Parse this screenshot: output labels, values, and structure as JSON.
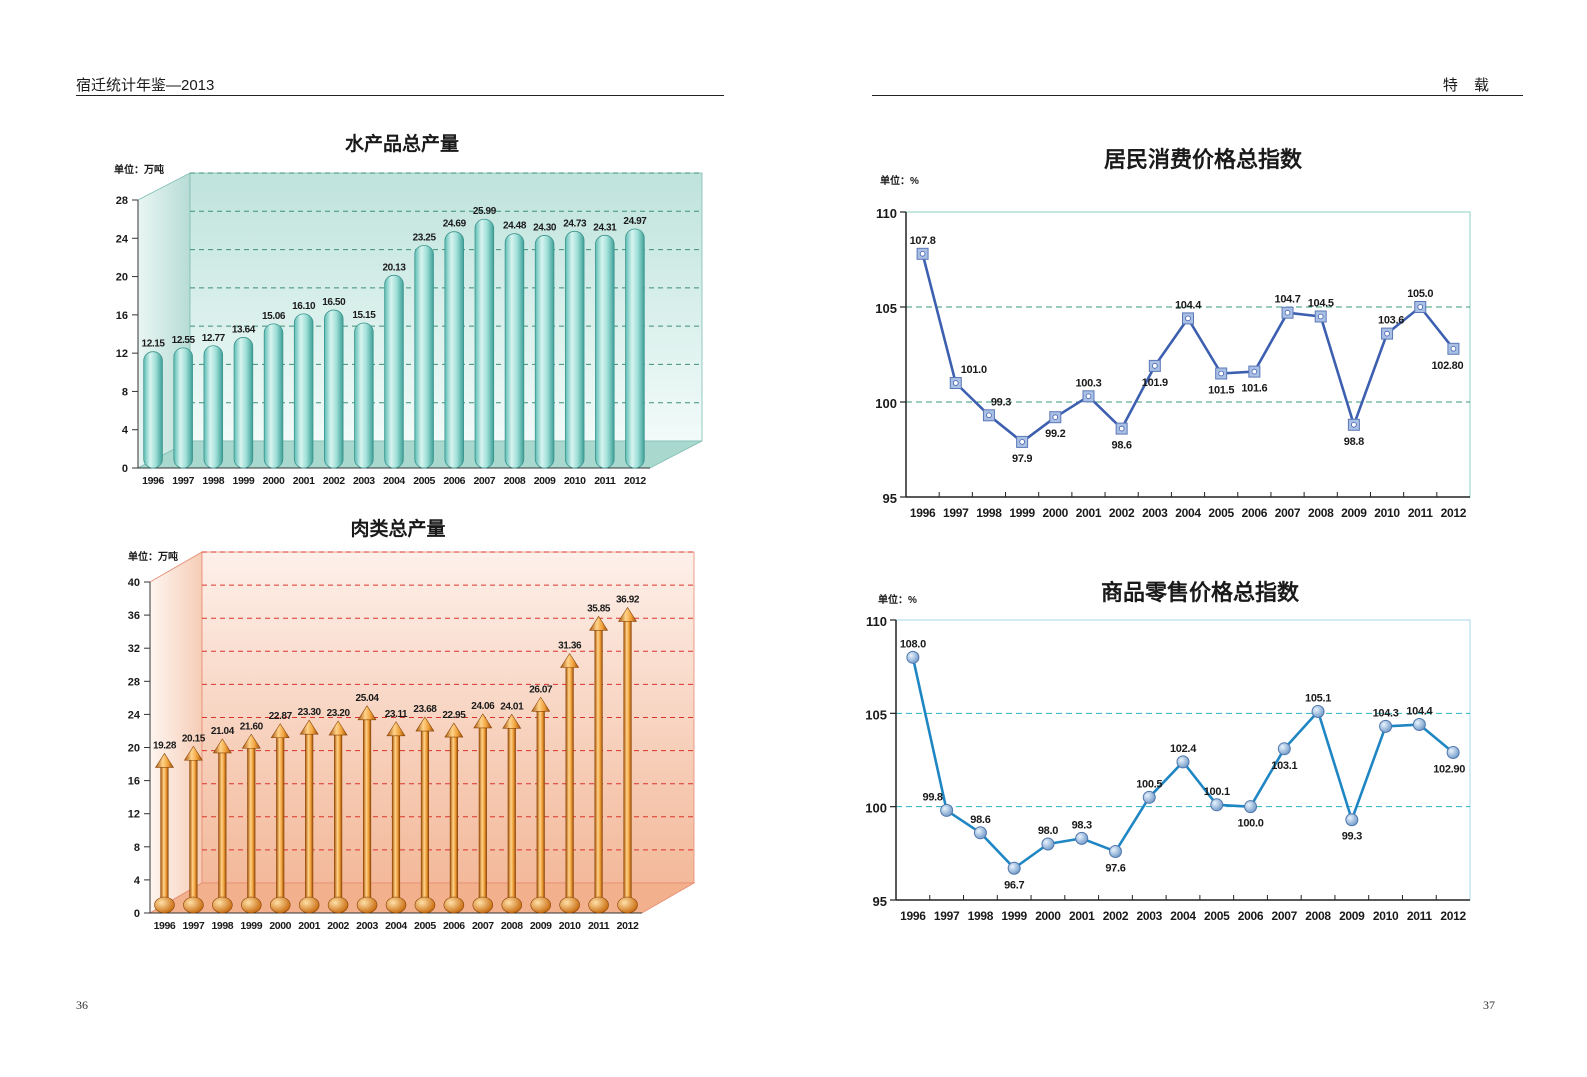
{
  "header": {
    "left_title": "宿迁统计年鉴—2013",
    "right_title": "特  载"
  },
  "footer": {
    "left_page": "36",
    "right_page": "37"
  },
  "colors": {
    "aquatic": "#5ec4bc",
    "meat": "#e88a1a",
    "cpi": "#3d5fb0",
    "rpi": "#1f86c4"
  },
  "charts": [
    {
      "title": "水产品总产量",
      "unit": "单位：万吨"
    },
    {
      "title": "肉类总产量",
      "unit": "单位：万吨"
    },
    {
      "title": "居民消费价格总指数",
      "unit": "单位：%"
    },
    {
      "title": "商品零售价格总指数",
      "unit": "单位：%"
    }
  ],
  "chart_data": [
    {
      "type": "bar",
      "title": "水产品总产量",
      "unit": "单位：万吨",
      "categories": [
        "1996",
        "1997",
        "1998",
        "1999",
        "2000",
        "2001",
        "2002",
        "2003",
        "2004",
        "2005",
        "2006",
        "2007",
        "2008",
        "2009",
        "2010",
        "2011",
        "2012"
      ],
      "values": [
        12.15,
        12.55,
        12.77,
        13.64,
        15.06,
        16.1,
        16.5,
        15.15,
        20.13,
        23.25,
        24.69,
        25.99,
        24.48,
        24.3,
        24.73,
        24.31,
        24.97
      ],
      "labels": [
        "12.15",
        "12.55",
        "12.77",
        "13.64",
        "15.06",
        "16.10",
        "16.50",
        "15.15",
        "20.13",
        "23.25",
        "24.69",
        "25.99",
        "24.48",
        "24.30",
        "24.73",
        "24.31",
        "24.97"
      ],
      "ylim": [
        0,
        28
      ],
      "yticks": [
        "0",
        "4",
        "8",
        "12",
        "16",
        "20",
        "24",
        "28"
      ]
    },
    {
      "type": "bar",
      "title": "肉类总产量",
      "unit": "单位：万吨",
      "categories": [
        "1996",
        "1997",
        "1998",
        "1999",
        "2000",
        "2001",
        "2002",
        "2003",
        "2004",
        "2005",
        "2006",
        "2007",
        "2008",
        "2009",
        "2010",
        "2011",
        "2012"
      ],
      "values": [
        19.28,
        20.15,
        21.04,
        21.6,
        22.87,
        23.3,
        23.2,
        25.04,
        23.11,
        23.68,
        22.95,
        24.06,
        24.01,
        26.07,
        31.36,
        35.85,
        36.92
      ],
      "labels": [
        "19.28",
        "20.15",
        "21.04",
        "21.60",
        "22.87",
        "23.30",
        "23.20",
        "25.04",
        "23.11",
        "23.68",
        "22.95",
        "24.06",
        "24.01",
        "26.07",
        "31.36",
        "35.85",
        "36.92"
      ],
      "ylim": [
        0,
        40
      ],
      "yticks": [
        "0",
        "4",
        "8",
        "12",
        "16",
        "20",
        "24",
        "28",
        "32",
        "36",
        "40"
      ]
    },
    {
      "type": "line",
      "title": "居民消费价格总指数",
      "unit": "单位：%",
      "categories": [
        "1996",
        "1997",
        "1998",
        "1999",
        "2000",
        "2001",
        "2002",
        "2003",
        "2004",
        "2005",
        "2006",
        "2007",
        "2008",
        "2009",
        "2010",
        "2011",
        "2012"
      ],
      "values": [
        107.8,
        101.0,
        99.3,
        97.9,
        99.2,
        100.3,
        98.6,
        101.9,
        104.4,
        101.5,
        101.6,
        104.7,
        104.5,
        98.8,
        103.6,
        105.0,
        102.8
      ],
      "labels": [
        "107.8",
        "101.0",
        "99.3",
        "97.9",
        "99.2",
        "100.3",
        "98.6",
        "101.9",
        "104.4",
        "101.5",
        "101.6",
        "104.7",
        "104.5",
        "98.8",
        "103.6",
        "105.0",
        "102.80"
      ],
      "ylim": [
        95,
        110
      ],
      "yticks": [
        "95",
        "100",
        "105",
        "110"
      ]
    },
    {
      "type": "line",
      "title": "商品零售价格总指数",
      "unit": "单位：%",
      "categories": [
        "1996",
        "1997",
        "1998",
        "1999",
        "2000",
        "2001",
        "2002",
        "2003",
        "2004",
        "2005",
        "2006",
        "2007",
        "2008",
        "2009",
        "2010",
        "2011",
        "2012"
      ],
      "values": [
        108.0,
        99.8,
        98.6,
        96.7,
        98.0,
        98.3,
        97.6,
        100.5,
        102.4,
        100.1,
        100.0,
        103.1,
        105.1,
        99.3,
        104.3,
        104.4,
        102.9
      ],
      "labels": [
        "108.0",
        "99.8",
        "98.6",
        "96.7",
        "98.0",
        "98.3",
        "97.6",
        "100.5",
        "102.4",
        "100.1",
        "100.0",
        "103.1",
        "105.1",
        "99.3",
        "104.3",
        "104.4",
        "102.90"
      ],
      "ylim": [
        95,
        110
      ],
      "yticks": [
        "95",
        "100",
        "105",
        "110"
      ]
    }
  ]
}
